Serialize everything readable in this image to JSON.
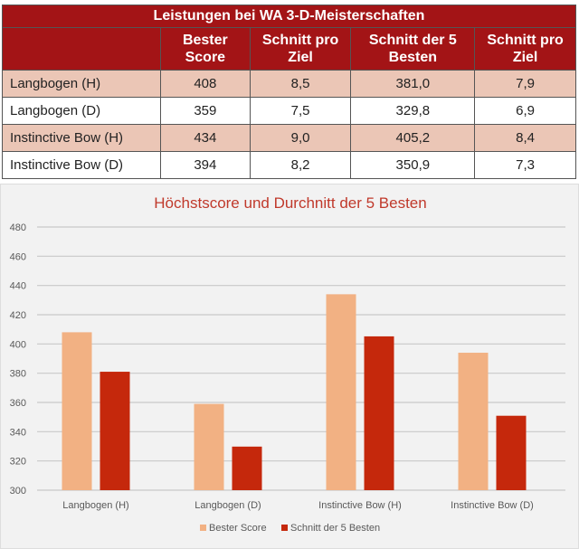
{
  "table": {
    "title": "Leistungen bei WA 3-D-Meisterschaften",
    "headers": [
      "",
      "Bester Score",
      "Schnitt pro Ziel",
      "Schnitt der 5 Besten",
      "Schnitt pro Ziel"
    ],
    "rows": [
      [
        "Langbogen (H)",
        "408",
        "8,5",
        "381,0",
        "7,9"
      ],
      [
        "Langbogen (D)",
        "359",
        "7,5",
        "329,8",
        "6,9"
      ],
      [
        "Instinctive Bow (H)",
        "434",
        "9,0",
        "405,2",
        "8,4"
      ],
      [
        "Instinctive Bow (D)",
        "394",
        "8,2",
        "350,9",
        "7,3"
      ]
    ]
  },
  "chart_data": {
    "type": "bar",
    "title": "Höchstscore und Durchnitt der  5 Besten",
    "categories": [
      "Langbogen (H)",
      "Langbogen (D)",
      "Instinctive Bow (H)",
      "Instinctive Bow (D)"
    ],
    "series": [
      {
        "name": "Bester Score",
        "values": [
          408,
          359,
          434,
          394
        ],
        "color": "#f2b183"
      },
      {
        "name": "Schnitt der 5 Besten",
        "values": [
          381.0,
          329.8,
          405.2,
          350.9
        ],
        "color": "#c5280c"
      }
    ],
    "ylim": [
      300,
      480
    ],
    "yticks": [
      300,
      320,
      340,
      360,
      380,
      400,
      420,
      440,
      460,
      480
    ],
    "grid": true,
    "legend": "bottom"
  }
}
